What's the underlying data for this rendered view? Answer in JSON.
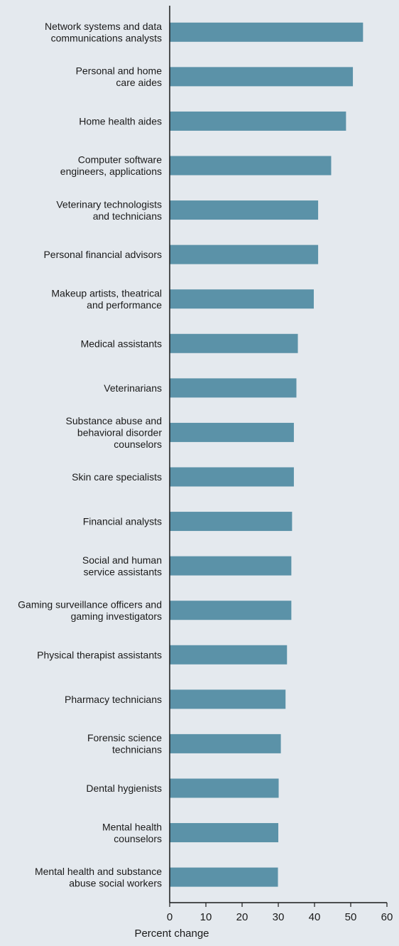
{
  "chart_data": {
    "type": "bar",
    "orientation": "horizontal",
    "categories": [
      [
        "Network systems and data",
        "communications analysts"
      ],
      [
        "Personal and home",
        "care aides"
      ],
      [
        "Home health aides"
      ],
      [
        "Computer software",
        "engineers, applications"
      ],
      [
        "Veterinary technologists",
        "and technicians"
      ],
      [
        "Personal financial advisors"
      ],
      [
        "Makeup artists, theatrical",
        "and performance"
      ],
      [
        "Medical assistants"
      ],
      [
        "Veterinarians"
      ],
      [
        "Substance abuse and",
        "behavioral disorder",
        "counselors"
      ],
      [
        "Skin care specialists"
      ],
      [
        "Financial analysts"
      ],
      [
        "Social and human",
        "service assistants"
      ],
      [
        "Gaming surveillance officers and",
        "gaming investigators"
      ],
      [
        "Physical therapist assistants"
      ],
      [
        "Pharmacy technicians"
      ],
      [
        "Forensic science",
        "technicians"
      ],
      [
        "Dental hygienists"
      ],
      [
        "Mental health",
        "counselors"
      ],
      [
        "Mental health and substance",
        "abuse social workers"
      ]
    ],
    "values": [
      53.4,
      50.6,
      48.7,
      44.6,
      41.0,
      41.0,
      39.8,
      35.4,
      35.0,
      34.3,
      34.3,
      33.8,
      33.6,
      33.6,
      32.4,
      32.0,
      30.7,
      30.1,
      30.0,
      29.9
    ],
    "xlabel": "Percent change",
    "xlim": [
      0,
      60
    ],
    "xticks": [
      "0",
      "10",
      "20",
      "30",
      "40",
      "50",
      "60"
    ],
    "bar_color": "#5b92a8",
    "axis_color": "#1a1a1a",
    "background": "#e4e9ee",
    "grid": false
  }
}
